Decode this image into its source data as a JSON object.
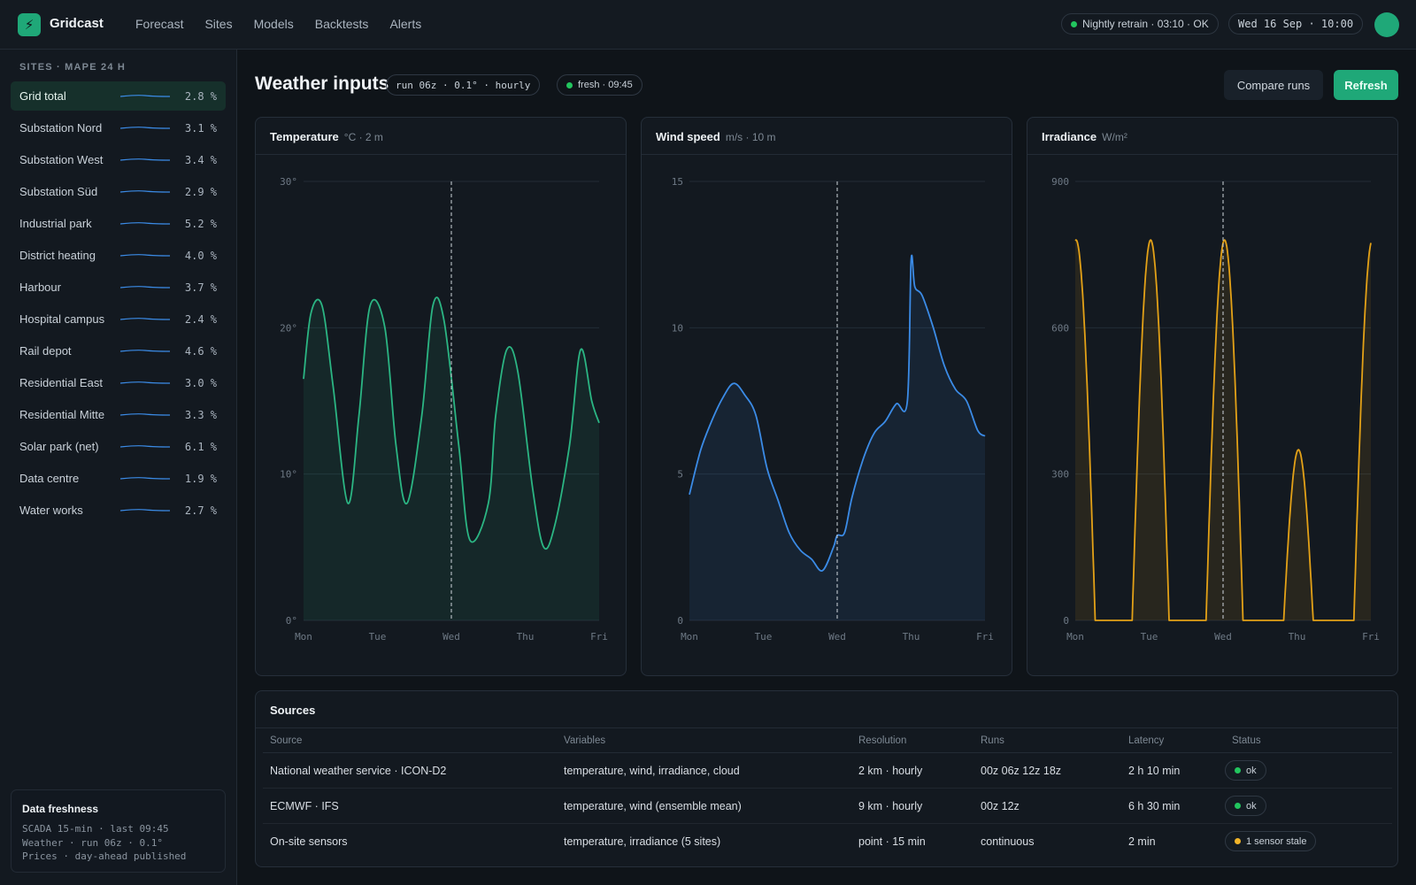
{
  "app": {
    "brand": "Gridcast",
    "nav": [
      "Forecast",
      "Sites",
      "Models",
      "Backtests",
      "Alerts"
    ],
    "retrain_status": "Nightly retrain · 03:10 · OK",
    "datetime": "Wed 16 Sep · 10:00"
  },
  "sidebar": {
    "heading": "SITES · MAPE 24 H",
    "sites": [
      {
        "name": "Grid total",
        "mape": "2.8 %",
        "active": true
      },
      {
        "name": "Substation Nord",
        "mape": "3.1 %"
      },
      {
        "name": "Substation West",
        "mape": "3.4 %"
      },
      {
        "name": "Substation Süd",
        "mape": "2.9 %"
      },
      {
        "name": "Industrial park",
        "mape": "5.2 %"
      },
      {
        "name": "District heating",
        "mape": "4.0 %"
      },
      {
        "name": "Harbour",
        "mape": "3.7 %"
      },
      {
        "name": "Hospital campus",
        "mape": "2.4 %"
      },
      {
        "name": "Rail depot",
        "mape": "4.6 %"
      },
      {
        "name": "Residential East",
        "mape": "3.0 %"
      },
      {
        "name": "Residential Mitte",
        "mape": "3.3 %"
      },
      {
        "name": "Solar park (net)",
        "mape": "6.1 %"
      },
      {
        "name": "Data centre",
        "mape": "1.9 %"
      },
      {
        "name": "Water works",
        "mape": "2.7 %"
      }
    ],
    "freshness": {
      "title": "Data freshness",
      "lines": [
        "SCADA 15-min · last 09:45",
        "Weather · run 06z · 0.1°",
        "Prices · day-ahead published"
      ]
    }
  },
  "main": {
    "title": "Weather inputs",
    "run_chip": "run 06z · 0.1° · hourly",
    "fresh_chip": "fresh · 09:45",
    "compare_label": "Compare runs",
    "refresh_label": "Refresh"
  },
  "colors": {
    "accent": "#1fa878",
    "temperature": "#2bb583",
    "wind": "#3b8be6",
    "irradiance": "#e3a117",
    "ok": "#22c55e",
    "warn": "#f0b429"
  },
  "chart_data": [
    {
      "type": "area",
      "title": "Temperature",
      "unit": "°C · 2 m",
      "categories": [
        "Mon",
        "Tue",
        "Wed",
        "Thu",
        "Fri"
      ],
      "ytick_labels": [
        "0°",
        "10°",
        "20°",
        "30°"
      ],
      "ylim": [
        0,
        30
      ],
      "now_marker": "Wed",
      "x": [
        0,
        0.1,
        0.25,
        0.4,
        0.6,
        0.75,
        0.9,
        1.1,
        1.25,
        1.4,
        1.6,
        1.75,
        1.9,
        2.1,
        2.25,
        2.5,
        2.6,
        2.75,
        2.9,
        3.1,
        3.25,
        3.4,
        3.6,
        3.75,
        3.9,
        4.0
      ],
      "values": [
        16.5,
        21,
        21.5,
        16,
        8,
        14,
        21.5,
        20,
        12,
        8,
        14,
        21.5,
        20.5,
        12,
        5.5,
        8,
        14,
        18.5,
        17,
        9,
        5,
        6.5,
        12,
        18.5,
        15,
        13.5
      ],
      "grid": true
    },
    {
      "type": "area",
      "title": "Wind speed",
      "unit": "m/s · 10 m",
      "categories": [
        "Mon",
        "Tue",
        "Wed",
        "Thu",
        "Fri"
      ],
      "ytick_labels": [
        "0",
        "5",
        "10",
        "15"
      ],
      "ylim": [
        0,
        15
      ],
      "now_marker": "Wed",
      "x": [
        0,
        0.15,
        0.3,
        0.45,
        0.6,
        0.75,
        0.9,
        1.05,
        1.2,
        1.35,
        1.5,
        1.65,
        1.8,
        1.95,
        2.0,
        2.1,
        2.2,
        2.35,
        2.5,
        2.65,
        2.8,
        2.95,
        3.0,
        3.05,
        3.15,
        3.3,
        3.45,
        3.6,
        3.75,
        3.9,
        4.0
      ],
      "values": [
        4.3,
        5.8,
        6.8,
        7.6,
        8.1,
        7.7,
        7.0,
        5.2,
        4.1,
        3.0,
        2.4,
        2.1,
        1.7,
        2.5,
        2.9,
        3.0,
        4.2,
        5.5,
        6.4,
        6.8,
        7.4,
        7.5,
        12.3,
        11.4,
        11.1,
        10.0,
        8.7,
        7.9,
        7.5,
        6.5,
        6.3
      ],
      "grid": true
    },
    {
      "type": "area",
      "title": "Irradiance",
      "unit": "W/m²",
      "categories": [
        "Mon",
        "Tue",
        "Wed",
        "Thu",
        "Fri"
      ],
      "ytick_labels": [
        "0",
        "300",
        "600",
        "900"
      ],
      "ylim": [
        0,
        900
      ],
      "now_marker": "Wed",
      "days": [
        {
          "start": -0.25,
          "end": 0.27,
          "peak": 780
        },
        {
          "start": 0.77,
          "end": 1.27,
          "peak": 780
        },
        {
          "start": 1.77,
          "end": 2.27,
          "peak": 780
        },
        {
          "start": 2.82,
          "end": 3.22,
          "peak": 350
        },
        {
          "start": 3.77,
          "end": 4.27,
          "peak": 780
        }
      ],
      "grid": true
    }
  ],
  "sources": {
    "title": "Sources",
    "columns": [
      "Source",
      "Variables",
      "Resolution",
      "Runs",
      "Latency",
      "Status"
    ],
    "rows": [
      {
        "source": "National weather service · ICON-D2",
        "variables": "temperature, wind, irradiance, cloud",
        "resolution": "2 km · hourly",
        "runs": "00z 06z 12z 18z",
        "latency": "2 h 10 min",
        "status": "ok",
        "level": "ok"
      },
      {
        "source": "ECMWF · IFS",
        "variables": "temperature, wind (ensemble mean)",
        "resolution": "9 km · hourly",
        "runs": "00z 12z",
        "latency": "6 h 30 min",
        "status": "ok",
        "level": "ok"
      },
      {
        "source": "On-site sensors",
        "variables": "temperature, irradiance (5 sites)",
        "resolution": "point · 15 min",
        "runs": "continuous",
        "latency": "2 min",
        "status": "1 sensor stale",
        "level": "warn"
      }
    ]
  }
}
